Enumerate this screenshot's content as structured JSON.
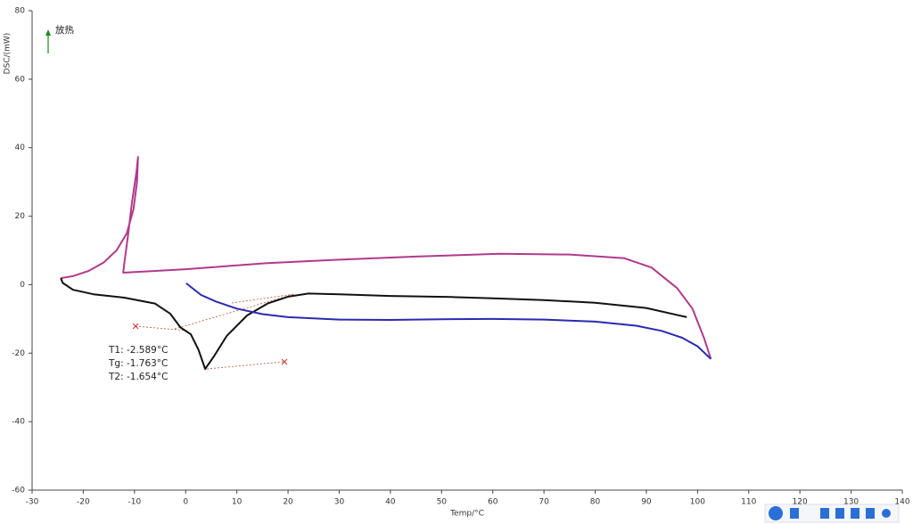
{
  "chart_data": {
    "type": "line",
    "x_label": "Temp/°C",
    "y_label": "DSC/(mW)",
    "xlim": [
      -30,
      140
    ],
    "xticks": [
      -30,
      -20,
      -10,
      0,
      10,
      20,
      30,
      40,
      50,
      60,
      70,
      80,
      90,
      100,
      110,
      120,
      130,
      140
    ],
    "ylim": [
      -60,
      80
    ],
    "yticks": [
      -60,
      -40,
      -20,
      0,
      20,
      40,
      60,
      80
    ],
    "exo_label": "放热",
    "annotations": [
      "T1: -2.589°C",
      "Tg: -1.763°C",
      "T2: -1.654°C"
    ],
    "series": [
      {
        "color": "#b03a8c",
        "x": [
          -24.4,
          -22,
          -19,
          -16,
          -13.5,
          -11.5,
          -10.2,
          -9.5,
          -9.3,
          -9.6,
          -10.5,
          -11.3,
          -12,
          -12.2,
          0,
          16,
          30,
          45,
          61.3,
          75,
          85.7,
          91,
          96,
          99,
          101.3,
          102.6
        ],
        "values": [
          1.9,
          2.5,
          4,
          6.5,
          10,
          15,
          22,
          30,
          37.3,
          33,
          24,
          14,
          6,
          3.5,
          4.5,
          6.3,
          7.3,
          8.2,
          9,
          8.8,
          7.7,
          5,
          -1,
          -7,
          -15.7,
          -21.7
        ]
      },
      {
        "color": "#111111",
        "x": [
          -24.4,
          -24,
          -22,
          -18,
          -12,
          -6,
          -3,
          -1,
          1,
          2.5,
          3.8,
          5.5,
          8,
          12,
          16,
          20,
          24,
          30,
          40,
          52,
          60,
          70,
          80,
          90,
          97.9
        ],
        "values": [
          1.9,
          0.5,
          -1.5,
          -2.8,
          -3.8,
          -5.5,
          -8.5,
          -12.5,
          -14.5,
          -19,
          -24.6,
          -21,
          -15,
          -9,
          -5.5,
          -3.5,
          -2.6,
          -2.8,
          -3.3,
          -3.6,
          -4,
          -4.5,
          -5.3,
          -6.8,
          -9.5
        ]
      },
      {
        "color": "#2a2ab0",
        "x": [
          0.1,
          3,
          6,
          10,
          15,
          20,
          30,
          40,
          50,
          60,
          70,
          80,
          88,
          93,
          97,
          100,
          102.6
        ],
        "values": [
          0.4,
          -3,
          -5,
          -7,
          -8.6,
          -9.5,
          -10.2,
          -10.3,
          -10.1,
          -10,
          -10.2,
          -10.8,
          -12,
          -13.5,
          -15.5,
          -18,
          -21.7
        ]
      }
    ]
  }
}
